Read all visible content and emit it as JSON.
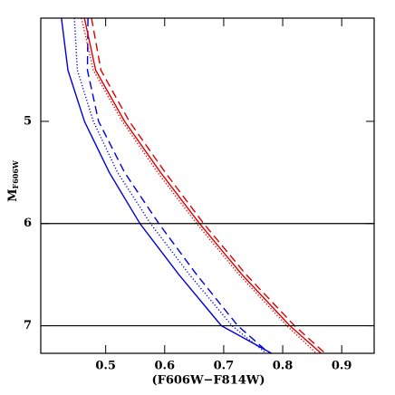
{
  "chart_data": {
    "type": "line",
    "xlabel": "(F606W−F814W)",
    "ylabel": "M",
    "ylabel_sub": "F606W",
    "xlim": [
      0.39,
      0.955
    ],
    "ylim": [
      7.27,
      3.99
    ],
    "xticks": [
      0.5,
      0.6,
      0.7,
      0.8,
      0.9
    ],
    "yticks": [
      5,
      6,
      7
    ],
    "hlines": [
      6,
      7
    ],
    "series": [
      {
        "color": "#0000dd",
        "dash": "solid",
        "x": [
          0.425,
          0.436,
          0.464,
          0.506,
          0.558,
          0.624,
          0.696,
          0.781
        ],
        "values": [
          3.99,
          4.5,
          5,
          5.5,
          6,
          6.5,
          7,
          7.27
        ]
      },
      {
        "color": "#0000dd",
        "dash": "dotted",
        "x": [
          0.447,
          0.452,
          0.479,
          0.52,
          0.576,
          0.642,
          0.714,
          0.772
        ],
        "values": [
          3.99,
          4.5,
          5,
          5.5,
          6,
          6.5,
          7,
          7.27
        ]
      },
      {
        "color": "#0000dd",
        "dash": "dashed",
        "x": [
          0.47,
          0.469,
          0.488,
          0.532,
          0.59,
          0.654,
          0.724,
          0.777
        ],
        "values": [
          3.99,
          4.5,
          5,
          5.5,
          6,
          6.5,
          7,
          7.27
        ]
      },
      {
        "color": "#dd0000",
        "dash": "dotted",
        "x": [
          0.459,
          0.479,
          0.528,
          0.588,
          0.654,
          0.726,
          0.807,
          0.857
        ],
        "values": [
          3.99,
          4.5,
          5,
          5.5,
          6,
          6.5,
          7,
          7.27
        ]
      },
      {
        "color": "#dd0000",
        "dash": "solid",
        "x": [
          0.464,
          0.483,
          0.532,
          0.593,
          0.659,
          0.731,
          0.812,
          0.865
        ],
        "values": [
          3.99,
          4.5,
          5,
          5.5,
          6,
          6.5,
          7,
          7.27
        ]
      },
      {
        "color": "#dd0000",
        "dash": "dashed",
        "x": [
          0.476,
          0.492,
          0.54,
          0.601,
          0.666,
          0.738,
          0.82,
          0.872
        ],
        "values": [
          3.99,
          4.5,
          5,
          5.5,
          6,
          6.5,
          7,
          7.27
        ]
      }
    ]
  }
}
